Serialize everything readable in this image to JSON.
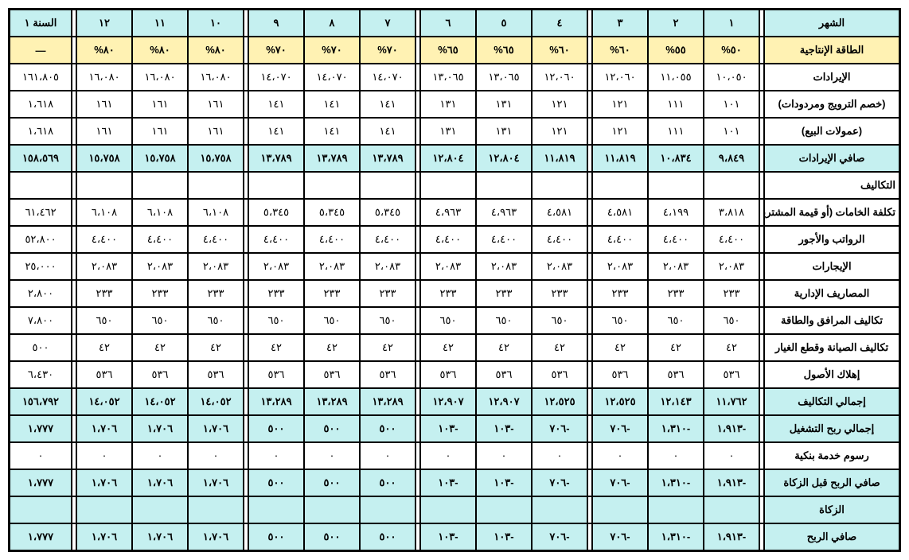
{
  "colors": {
    "header_bg": "#c5f0f0",
    "yellow_bg": "#fff2b3",
    "border": "#000000"
  },
  "header": {
    "month_label": "الشهر",
    "months": [
      "١",
      "٢",
      "٣",
      "٤",
      "٥",
      "٦",
      "٧",
      "٨",
      "٩",
      "١٠",
      "١١",
      "١٢"
    ],
    "year_label": "السنة ١"
  },
  "capacity": {
    "label": "الطاقة الإنتاجية",
    "values": [
      "٥٠%",
      "٥٥%",
      "٦٠%",
      "٦٠%",
      "٦٥%",
      "٦٥%",
      "٧٠%",
      "٧٠%",
      "٧٠%",
      "٨٠%",
      "٨٠%",
      "٨٠%"
    ],
    "year": "—"
  },
  "rows": [
    {
      "label": "الإيرادات",
      "v": [
        "١٠،٠٥٠",
        "١١،٠٥٥",
        "١٢،٠٦٠",
        "١٢،٠٦٠",
        "١٣،٠٦٥",
        "١٣،٠٦٥",
        "١٤،٠٧٠",
        "١٤،٠٧٠",
        "١٤،٠٧٠",
        "١٦،٠٨٠",
        "١٦،٠٨٠",
        "١٦،٠٨٠"
      ],
      "y": "١٦١،٨٠٥"
    },
    {
      "label": "(خصم الترويج ومردودات)",
      "v": [
        "١٠١",
        "١١١",
        "١٢١",
        "١٢١",
        "١٣١",
        "١٣١",
        "١٤١",
        "١٤١",
        "١٤١",
        "١٦١",
        "١٦١",
        "١٦١"
      ],
      "y": "١،٦١٨"
    },
    {
      "label": "(عمولات البيع)",
      "v": [
        "١٠١",
        "١١١",
        "١٢١",
        "١٢١",
        "١٣١",
        "١٣١",
        "١٤١",
        "١٤١",
        "١٤١",
        "١٦١",
        "١٦١",
        "١٦١"
      ],
      "y": "١،٦١٨"
    },
    {
      "label": "صافي الإيرادات",
      "hi": true,
      "v": [
        "٩،٨٤٩",
        "١٠،٨٣٤",
        "١١،٨١٩",
        "١١،٨١٩",
        "١٢،٨٠٤",
        "١٢،٨٠٤",
        "١٣،٧٨٩",
        "١٣،٧٨٩",
        "١٣،٧٨٩",
        "١٥،٧٥٨",
        "١٥،٧٥٨",
        "١٥،٧٥٨"
      ],
      "y": "١٥٨،٥٦٩"
    },
    {
      "label": "التكاليف",
      "section": true,
      "v": [
        "",
        "",
        "",
        "",
        "",
        "",
        "",
        "",
        "",
        "",
        "",
        ""
      ],
      "y": ""
    },
    {
      "label": "تكلفة الخامات (أو قيمة المشتريات)",
      "v": [
        "٣،٨١٨",
        "٤،١٩٩",
        "٤،٥٨١",
        "٤،٥٨١",
        "٤،٩٦٣",
        "٤،٩٦٣",
        "٥،٣٤٥",
        "٥،٣٤٥",
        "٥،٣٤٥",
        "٦،١٠٨",
        "٦،١٠٨",
        "٦،١٠٨"
      ],
      "y": "٦١،٤٦٢"
    },
    {
      "label": "الرواتب والأجور",
      "v": [
        "٤،٤٠٠",
        "٤،٤٠٠",
        "٤،٤٠٠",
        "٤،٤٠٠",
        "٤،٤٠٠",
        "٤،٤٠٠",
        "٤،٤٠٠",
        "٤،٤٠٠",
        "٤،٤٠٠",
        "٤،٤٠٠",
        "٤،٤٠٠",
        "٤،٤٠٠"
      ],
      "y": "٥٢،٨٠٠"
    },
    {
      "label": "الإيجارات",
      "v": [
        "٢،٠٨٣",
        "٢،٠٨٣",
        "٢،٠٨٣",
        "٢،٠٨٣",
        "٢،٠٨٣",
        "٢،٠٨٣",
        "٢،٠٨٣",
        "٢،٠٨٣",
        "٢،٠٨٣",
        "٢،٠٨٣",
        "٢،٠٨٣",
        "٢،٠٨٣"
      ],
      "y": "٢٥،٠٠٠"
    },
    {
      "label": "المصاريف الإدارية",
      "v": [
        "٢٣٣",
        "٢٣٣",
        "٢٣٣",
        "٢٣٣",
        "٢٣٣",
        "٢٣٣",
        "٢٣٣",
        "٢٣٣",
        "٢٣٣",
        "٢٣٣",
        "٢٣٣",
        "٢٣٣"
      ],
      "y": "٢،٨٠٠"
    },
    {
      "label": "تكاليف المرافق والطاقة",
      "v": [
        "٦٥٠",
        "٦٥٠",
        "٦٥٠",
        "٦٥٠",
        "٦٥٠",
        "٦٥٠",
        "٦٥٠",
        "٦٥٠",
        "٦٥٠",
        "٦٥٠",
        "٦٥٠",
        "٦٥٠"
      ],
      "y": "٧،٨٠٠"
    },
    {
      "label": "تكاليف الصيانة وقطع الغيار",
      "v": [
        "٤٢",
        "٤٢",
        "٤٢",
        "٤٢",
        "٤٢",
        "٤٢",
        "٤٢",
        "٤٢",
        "٤٢",
        "٤٢",
        "٤٢",
        "٤٢"
      ],
      "y": "٥٠٠"
    },
    {
      "label": "إهلاك الأصول",
      "v": [
        "٥٣٦",
        "٥٣٦",
        "٥٣٦",
        "٥٣٦",
        "٥٣٦",
        "٥٣٦",
        "٥٣٦",
        "٥٣٦",
        "٥٣٦",
        "٥٣٦",
        "٥٣٦",
        "٥٣٦"
      ],
      "y": "٦،٤٣٠"
    },
    {
      "label": "إجمالي التكاليف",
      "hi": true,
      "v": [
        "١١،٧٦٢",
        "١٢،١٤٣",
        "١٢،٥٢٥",
        "١٢،٥٢٥",
        "١٢،٩٠٧",
        "١٢،٩٠٧",
        "١٣،٢٨٩",
        "١٣،٢٨٩",
        "١٣،٢٨٩",
        "١٤،٠٥٢",
        "١٤،٠٥٢",
        "١٤،٠٥٢"
      ],
      "y": "١٥٦،٧٩٢"
    },
    {
      "label": "إجمالي ربح التشغيل",
      "hi": true,
      "v": [
        "-١،٩١٣",
        "-١،٣١٠",
        "-٧٠٦",
        "-٧٠٦",
        "-١٠٣",
        "-١٠٣",
        "٥٠٠",
        "٥٠٠",
        "٥٠٠",
        "١،٧٠٦",
        "١،٧٠٦",
        "١،٧٠٦"
      ],
      "y": "١،٧٧٧"
    },
    {
      "label": "رسوم خدمة بنكية",
      "v": [
        "٠",
        "٠",
        "٠",
        "٠",
        "٠",
        "٠",
        "٠",
        "٠",
        "٠",
        "٠",
        "٠",
        "٠"
      ],
      "y": "٠"
    },
    {
      "label": "صافي الربح قبل الزكاة",
      "hi": true,
      "v": [
        "-١،٩١٣",
        "-١،٣١٠",
        "-٧٠٦",
        "-٧٠٦",
        "-١٠٣",
        "-١٠٣",
        "٥٠٠",
        "٥٠٠",
        "٥٠٠",
        "١،٧٠٦",
        "١،٧٠٦",
        "١،٧٠٦"
      ],
      "y": "١،٧٧٧"
    },
    {
      "label": "الزكاة",
      "hi": true,
      "v": [
        "",
        "",
        "",
        "",
        "",
        "",
        "",
        "",
        "",
        "",
        "",
        ""
      ],
      "y": ""
    },
    {
      "label": "صافي الربح",
      "hi": true,
      "v": [
        "-١،٩١٣",
        "-١،٣١٠",
        "-٧٠٦",
        "-٧٠٦",
        "-١٠٣",
        "-١٠٣",
        "٥٠٠",
        "٥٠٠",
        "٥٠٠",
        "١،٧٠٦",
        "١،٧٠٦",
        "١،٧٠٦"
      ],
      "y": "١،٧٧٧"
    }
  ]
}
